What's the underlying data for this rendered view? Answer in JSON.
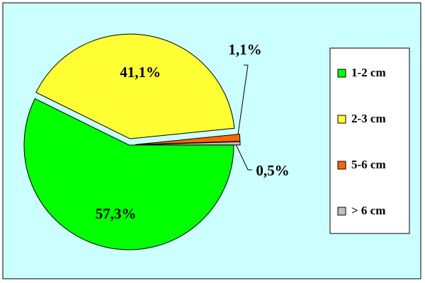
{
  "chart_data": {
    "type": "pie",
    "categories": [
      "1-2 cm",
      "2-3 cm",
      "5-6 cm",
      "> 6 cm"
    ],
    "values": [
      57.3,
      41.1,
      1.1,
      0.5
    ],
    "value_labels": [
      "57,3%",
      "41,1%",
      "1,1%",
      "0,5%"
    ],
    "colors": [
      "#00ff00",
      "#ffff33",
      "#ff6600",
      "#c0c0c0"
    ],
    "legend": "right"
  }
}
